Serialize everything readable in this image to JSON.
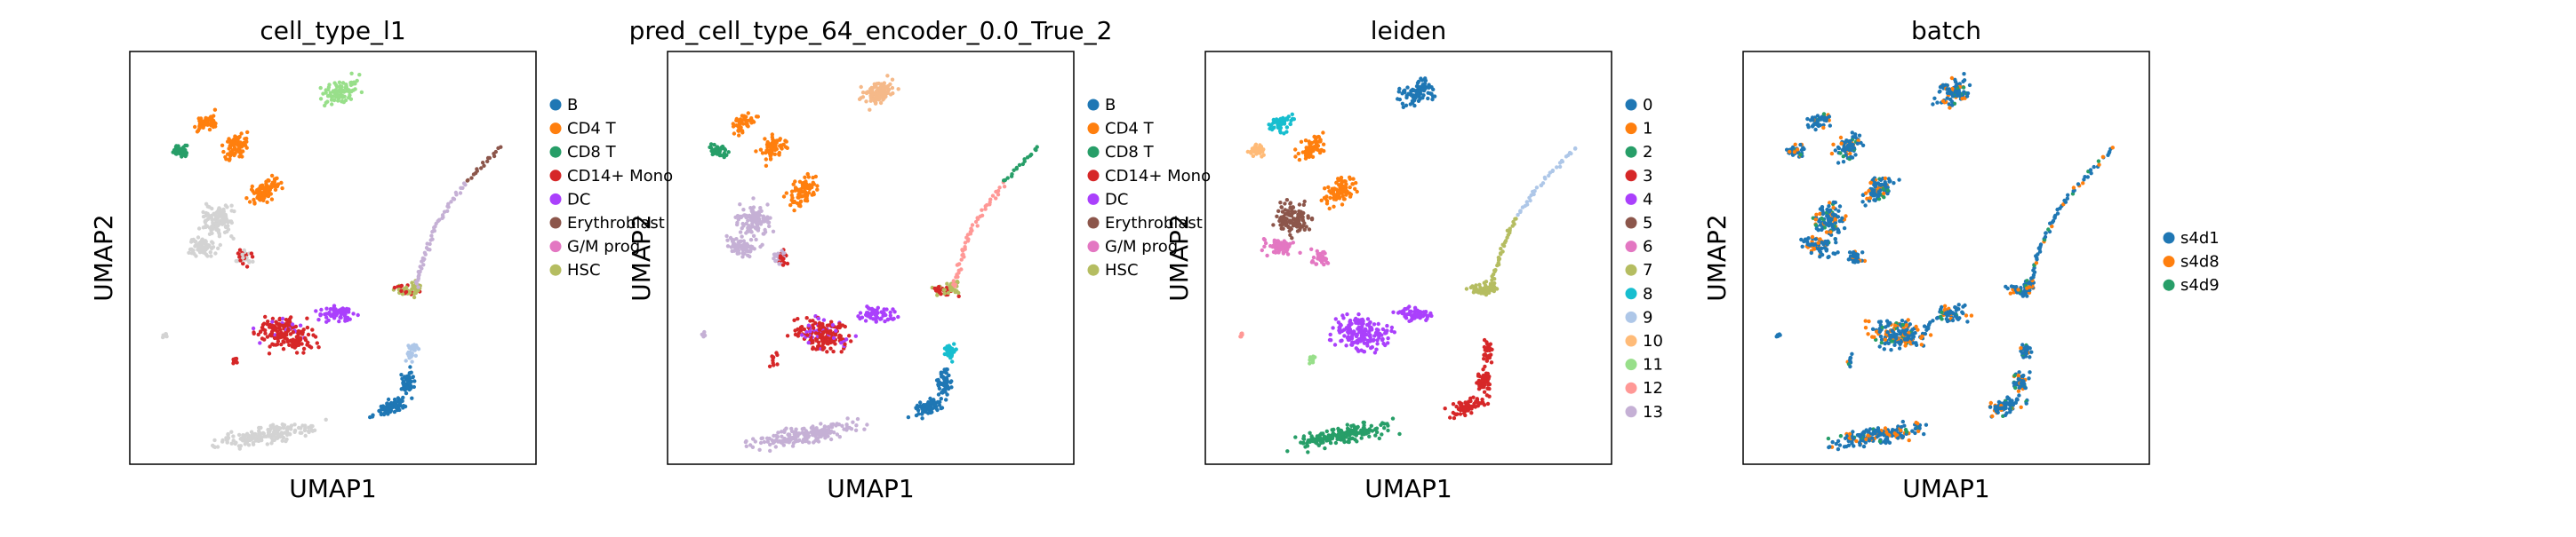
{
  "chart_data": [
    {
      "type": "scatter",
      "title": "cell_type_l1",
      "xlabel": "UMAP1",
      "ylabel": "UMAP2",
      "grid": false,
      "legend": "right",
      "series": [
        {
          "name": "B",
          "color": "#1f77b4"
        },
        {
          "name": "CD4 T",
          "color": "#ff7f0e"
        },
        {
          "name": "CD8 T",
          "color": "#279e68"
        },
        {
          "name": "CD14+ Mono",
          "color": "#d62728"
        },
        {
          "name": "DC",
          "color": "#aa40fc"
        },
        {
          "name": "Erythroblast",
          "color": "#8c564b"
        },
        {
          "name": "G/M prog",
          "color": "#e377c2"
        },
        {
          "name": "HSC",
          "color": "#b5bd61"
        }
      ]
    },
    {
      "type": "scatter",
      "title": "pred_cell_type_64_encoder_0.0_True_2",
      "xlabel": "UMAP1",
      "ylabel": "UMAP2",
      "grid": false,
      "legend": "right",
      "series": [
        {
          "name": "B",
          "color": "#1f77b4"
        },
        {
          "name": "CD4 T",
          "color": "#ff7f0e"
        },
        {
          "name": "CD8 T",
          "color": "#279e68"
        },
        {
          "name": "CD14+ Mono",
          "color": "#d62728"
        },
        {
          "name": "DC",
          "color": "#aa40fc"
        },
        {
          "name": "Erythroblast",
          "color": "#8c564b"
        },
        {
          "name": "G/M prog",
          "color": "#e377c2"
        },
        {
          "name": "HSC",
          "color": "#b5bd61"
        }
      ]
    },
    {
      "type": "scatter",
      "title": "leiden",
      "xlabel": "UMAP1",
      "ylabel": "UMAP2",
      "grid": false,
      "legend": "right",
      "series": [
        {
          "name": "0",
          "color": "#1f77b4"
        },
        {
          "name": "1",
          "color": "#ff7f0e"
        },
        {
          "name": "2",
          "color": "#279e68"
        },
        {
          "name": "3",
          "color": "#d62728"
        },
        {
          "name": "4",
          "color": "#aa40fc"
        },
        {
          "name": "5",
          "color": "#8c564b"
        },
        {
          "name": "6",
          "color": "#e377c2"
        },
        {
          "name": "7",
          "color": "#b5bd61"
        },
        {
          "name": "8",
          "color": "#17becf"
        },
        {
          "name": "9",
          "color": "#aec7e8"
        },
        {
          "name": "10",
          "color": "#ffbb78"
        },
        {
          "name": "11",
          "color": "#98df8a"
        },
        {
          "name": "12",
          "color": "#ff9896"
        },
        {
          "name": "13",
          "color": "#c5b0d5"
        }
      ]
    },
    {
      "type": "scatter",
      "title": "batch",
      "xlabel": "UMAP1",
      "ylabel": "UMAP2",
      "grid": false,
      "legend": "right",
      "series": [
        {
          "name": "s4d1",
          "color": "#1f77b4"
        },
        {
          "name": "s4d8",
          "color": "#ff7f0e"
        },
        {
          "name": "s4d9",
          "color": "#279e68"
        }
      ]
    }
  ],
  "unlabeled_color": "#d3d3d3"
}
